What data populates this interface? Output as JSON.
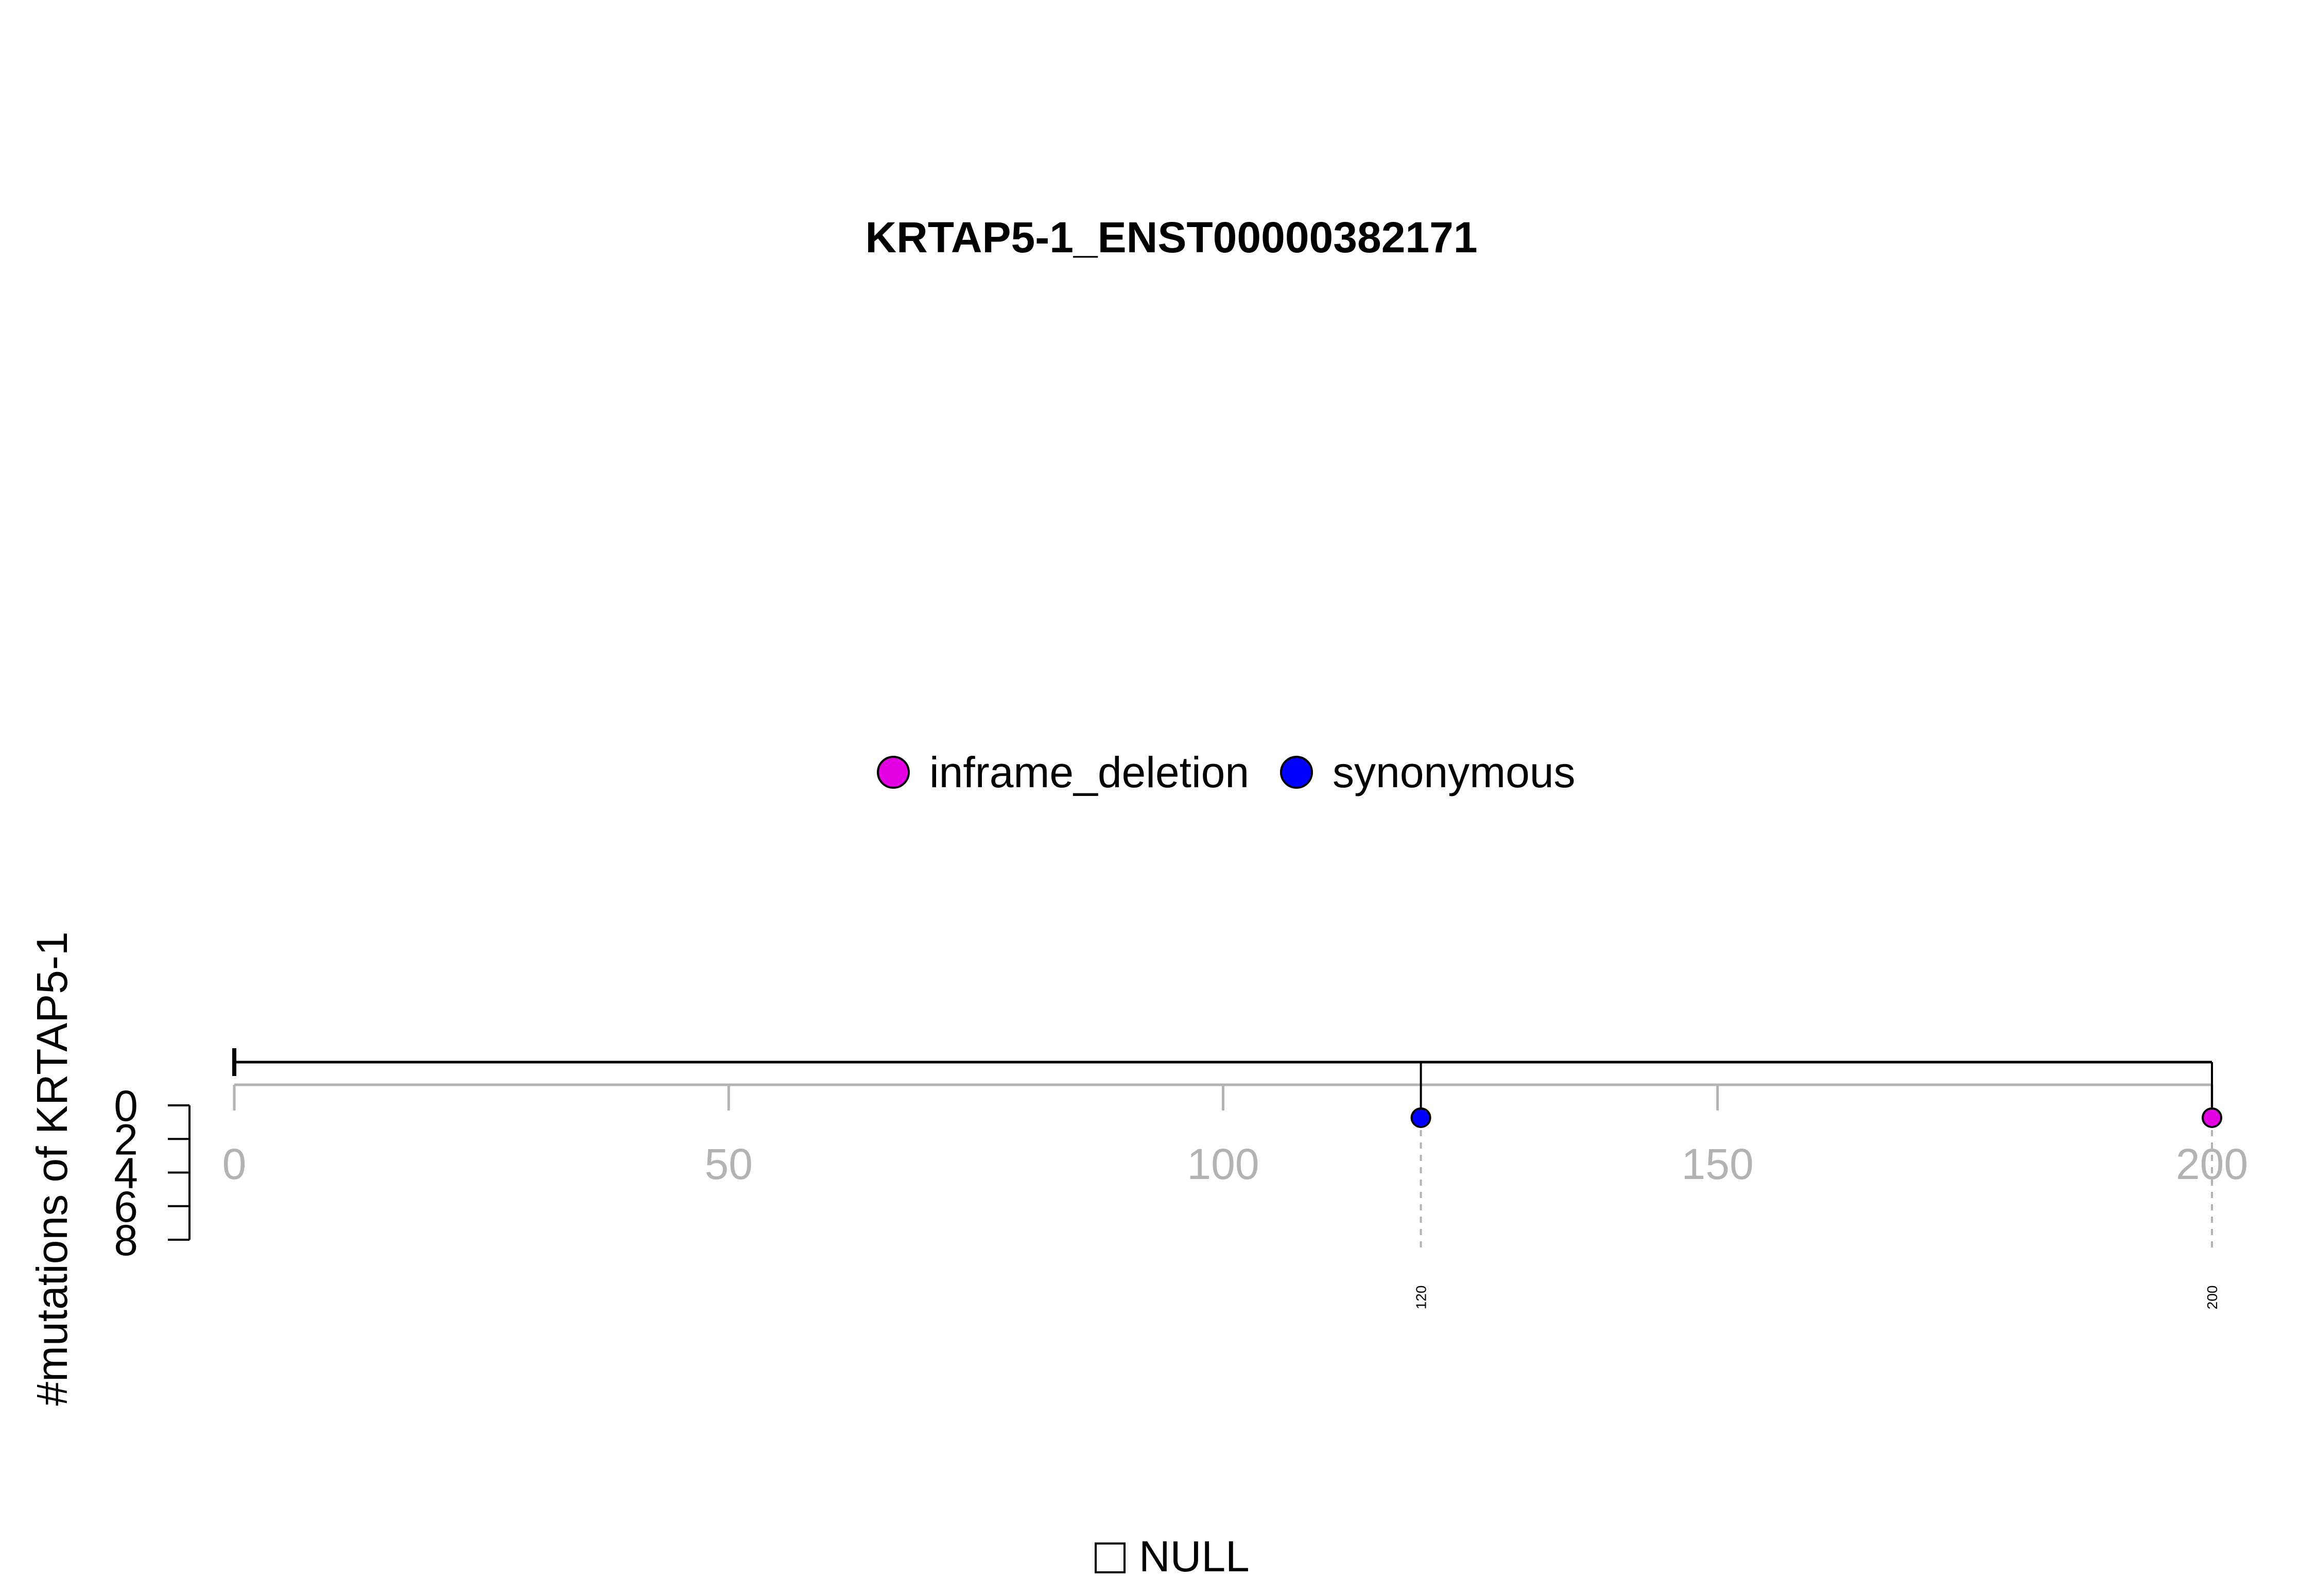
{
  "chart_data": {
    "type": "lollipop",
    "title": "KRTAP5-1_ENST00000382171",
    "ylabel": "#mutations of KRTAP5-1",
    "xlim": [
      0,
      200
    ],
    "x_ticks": [
      "0",
      "50",
      "100",
      "150",
      "200"
    ],
    "x_tick_values": [
      0,
      50,
      100,
      150,
      200
    ],
    "y_ticks": [
      "0",
      "2",
      "4",
      "6",
      "8"
    ],
    "y_tick_values": [
      0,
      2,
      4,
      6,
      8
    ],
    "ylim": [
      0,
      8
    ],
    "legend": [
      {
        "name": "inframe_deletion",
        "color": "#e300e3"
      },
      {
        "name": "synonymous",
        "color": "#0000ff"
      }
    ],
    "mutations": [
      {
        "position": 120,
        "label": "120",
        "type": "synonymous",
        "count": 1,
        "color": "#0000ff"
      },
      {
        "position": 200,
        "label": "200",
        "type": "inframe_deletion",
        "count": 1,
        "color": "#e300e3"
      }
    ],
    "domain_legend": [
      {
        "name": "NULL",
        "color": "#ffffff"
      }
    ]
  }
}
